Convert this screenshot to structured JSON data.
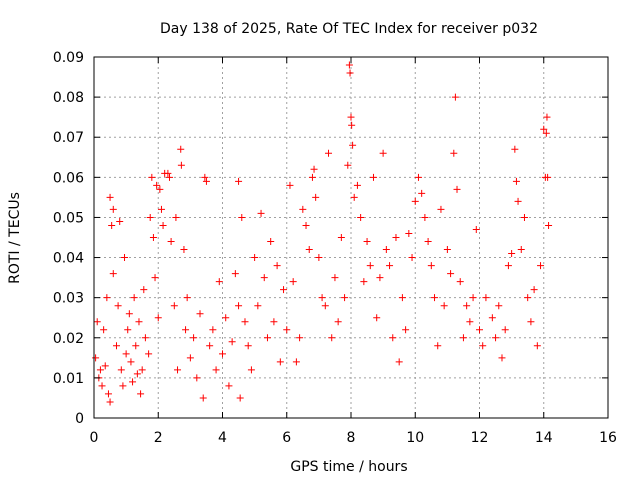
{
  "chart_data": {
    "type": "scatter",
    "title": "Day 138 of 2025, Rate Of TEC Index for receiver p032",
    "xlabel": "GPS time / hours",
    "ylabel": "ROTI / TECUs",
    "xlim": [
      0,
      16
    ],
    "ylim": [
      0,
      0.09
    ],
    "x_ticks": [
      0,
      2,
      4,
      6,
      8,
      10,
      12,
      14,
      16
    ],
    "y_ticks": [
      0,
      0.01,
      0.02,
      0.03,
      0.04,
      0.05,
      0.06,
      0.07,
      0.08,
      0.09
    ],
    "x_tick_labels": [
      "0",
      "2",
      "4",
      "6",
      "8",
      "10",
      "12",
      "14",
      "16"
    ],
    "y_tick_labels": [
      "0",
      "0.01",
      "0.02",
      "0.03",
      "0.04",
      "0.05",
      "0.06",
      "0.07",
      "0.08",
      "0.09"
    ],
    "grid": true,
    "marker": "plus",
    "color": "#ff0000",
    "x_data_range": [
      0,
      14.2
    ],
    "points": [
      [
        0.05,
        0.015
      ],
      [
        0.1,
        0.024
      ],
      [
        0.15,
        0.01
      ],
      [
        0.2,
        0.012
      ],
      [
        0.25,
        0.008
      ],
      [
        0.3,
        0.022
      ],
      [
        0.35,
        0.013
      ],
      [
        0.4,
        0.03
      ],
      [
        0.45,
        0.006
      ],
      [
        0.5,
        0.004
      ],
      [
        0.5,
        0.055
      ],
      [
        0.55,
        0.048
      ],
      [
        0.6,
        0.036
      ],
      [
        0.6,
        0.052
      ],
      [
        0.7,
        0.018
      ],
      [
        0.75,
        0.028
      ],
      [
        0.8,
        0.049
      ],
      [
        0.85,
        0.012
      ],
      [
        0.9,
        0.008
      ],
      [
        0.95,
        0.04
      ],
      [
        1.0,
        0.016
      ],
      [
        1.05,
        0.022
      ],
      [
        1.1,
        0.026
      ],
      [
        1.15,
        0.014
      ],
      [
        1.2,
        0.009
      ],
      [
        1.25,
        0.03
      ],
      [
        1.3,
        0.018
      ],
      [
        1.35,
        0.011
      ],
      [
        1.4,
        0.024
      ],
      [
        1.45,
        0.006
      ],
      [
        1.5,
        0.012
      ],
      [
        1.55,
        0.032
      ],
      [
        1.6,
        0.02
      ],
      [
        1.7,
        0.016
      ],
      [
        1.75,
        0.05
      ],
      [
        1.8,
        0.06
      ],
      [
        1.85,
        0.045
      ],
      [
        1.9,
        0.035
      ],
      [
        1.95,
        0.058
      ],
      [
        2.0,
        0.025
      ],
      [
        2.05,
        0.057
      ],
      [
        2.1,
        0.052
      ],
      [
        2.15,
        0.048
      ],
      [
        2.2,
        0.061
      ],
      [
        2.3,
        0.061
      ],
      [
        2.35,
        0.06
      ],
      [
        2.4,
        0.044
      ],
      [
        2.5,
        0.028
      ],
      [
        2.55,
        0.05
      ],
      [
        2.6,
        0.012
      ],
      [
        2.7,
        0.067
      ],
      [
        2.72,
        0.063
      ],
      [
        2.8,
        0.042
      ],
      [
        2.85,
        0.022
      ],
      [
        2.9,
        0.03
      ],
      [
        3.0,
        0.015
      ],
      [
        3.1,
        0.02
      ],
      [
        3.2,
        0.01
      ],
      [
        3.3,
        0.026
      ],
      [
        3.4,
        0.005
      ],
      [
        3.45,
        0.06
      ],
      [
        3.5,
        0.059
      ],
      [
        3.6,
        0.018
      ],
      [
        3.7,
        0.022
      ],
      [
        3.8,
        0.012
      ],
      [
        3.9,
        0.034
      ],
      [
        4.0,
        0.016
      ],
      [
        4.1,
        0.025
      ],
      [
        4.2,
        0.008
      ],
      [
        4.3,
        0.019
      ],
      [
        4.4,
        0.036
      ],
      [
        4.5,
        0.028
      ],
      [
        4.5,
        0.059
      ],
      [
        4.55,
        0.005
      ],
      [
        4.6,
        0.05
      ],
      [
        4.7,
        0.024
      ],
      [
        4.8,
        0.018
      ],
      [
        4.9,
        0.012
      ],
      [
        5.0,
        0.04
      ],
      [
        5.1,
        0.028
      ],
      [
        5.2,
        0.051
      ],
      [
        5.3,
        0.035
      ],
      [
        5.4,
        0.02
      ],
      [
        5.5,
        0.044
      ],
      [
        5.6,
        0.024
      ],
      [
        5.7,
        0.038
      ],
      [
        5.8,
        0.014
      ],
      [
        5.9,
        0.032
      ],
      [
        6.0,
        0.022
      ],
      [
        6.1,
        0.058
      ],
      [
        6.2,
        0.034
      ],
      [
        6.3,
        0.014
      ],
      [
        6.4,
        0.02
      ],
      [
        6.5,
        0.052
      ],
      [
        6.6,
        0.048
      ],
      [
        6.7,
        0.042
      ],
      [
        6.8,
        0.06
      ],
      [
        6.85,
        0.062
      ],
      [
        6.9,
        0.055
      ],
      [
        7.0,
        0.04
      ],
      [
        7.1,
        0.03
      ],
      [
        7.2,
        0.028
      ],
      [
        7.3,
        0.066
      ],
      [
        7.4,
        0.02
      ],
      [
        7.5,
        0.035
      ],
      [
        7.6,
        0.024
      ],
      [
        7.7,
        0.045
      ],
      [
        7.8,
        0.03
      ],
      [
        7.9,
        0.063
      ],
      [
        7.95,
        0.088
      ],
      [
        7.97,
        0.086
      ],
      [
        8.0,
        0.075
      ],
      [
        8.02,
        0.073
      ],
      [
        8.05,
        0.068
      ],
      [
        8.1,
        0.055
      ],
      [
        8.2,
        0.058
      ],
      [
        8.3,
        0.05
      ],
      [
        8.4,
        0.034
      ],
      [
        8.5,
        0.044
      ],
      [
        8.6,
        0.038
      ],
      [
        8.7,
        0.06
      ],
      [
        8.8,
        0.025
      ],
      [
        8.9,
        0.035
      ],
      [
        9.0,
        0.066
      ],
      [
        9.1,
        0.042
      ],
      [
        9.2,
        0.038
      ],
      [
        9.3,
        0.02
      ],
      [
        9.4,
        0.045
      ],
      [
        9.5,
        0.014
      ],
      [
        9.6,
        0.03
      ],
      [
        9.7,
        0.022
      ],
      [
        9.8,
        0.046
      ],
      [
        9.9,
        0.04
      ],
      [
        10.0,
        0.054
      ],
      [
        10.1,
        0.06
      ],
      [
        10.2,
        0.056
      ],
      [
        10.3,
        0.05
      ],
      [
        10.4,
        0.044
      ],
      [
        10.5,
        0.038
      ],
      [
        10.6,
        0.03
      ],
      [
        10.7,
        0.018
      ],
      [
        10.8,
        0.052
      ],
      [
        10.9,
        0.028
      ],
      [
        11.0,
        0.042
      ],
      [
        11.1,
        0.036
      ],
      [
        11.2,
        0.066
      ],
      [
        11.25,
        0.08
      ],
      [
        11.3,
        0.057
      ],
      [
        11.4,
        0.034
      ],
      [
        11.5,
        0.02
      ],
      [
        11.6,
        0.028
      ],
      [
        11.7,
        0.024
      ],
      [
        11.8,
        0.03
      ],
      [
        11.9,
        0.047
      ],
      [
        12.0,
        0.022
      ],
      [
        12.1,
        0.018
      ],
      [
        12.2,
        0.03
      ],
      [
        12.4,
        0.025
      ],
      [
        12.5,
        0.02
      ],
      [
        12.6,
        0.028
      ],
      [
        12.7,
        0.015
      ],
      [
        12.8,
        0.022
      ],
      [
        12.9,
        0.038
      ],
      [
        13.0,
        0.041
      ],
      [
        13.1,
        0.067
      ],
      [
        13.15,
        0.059
      ],
      [
        13.2,
        0.054
      ],
      [
        13.3,
        0.042
      ],
      [
        13.4,
        0.05
      ],
      [
        13.5,
        0.03
      ],
      [
        13.6,
        0.024
      ],
      [
        13.7,
        0.032
      ],
      [
        13.8,
        0.018
      ],
      [
        13.9,
        0.038
      ],
      [
        14.0,
        0.072
      ],
      [
        14.05,
        0.06
      ],
      [
        14.08,
        0.071
      ],
      [
        14.1,
        0.075
      ],
      [
        14.12,
        0.06
      ],
      [
        14.15,
        0.048
      ]
    ]
  }
}
